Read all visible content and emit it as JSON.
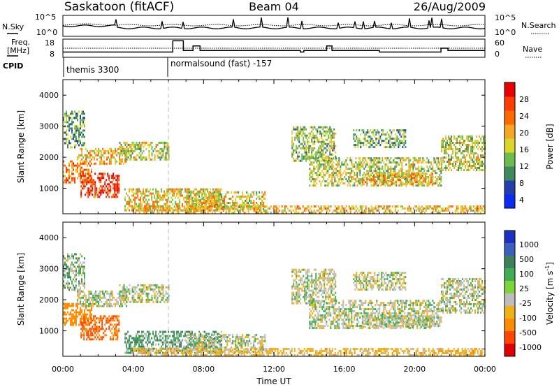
{
  "header": {
    "station": "Saskatoon (fitACF)",
    "beam": "Beam 04",
    "date": "26/Aug/2009"
  },
  "noise_panel": {
    "left_label": "N.Sky",
    "right_label": "N.Search",
    "left_ticks": [
      "10^5",
      "10^0"
    ],
    "right_ticks": [
      "10^5",
      "10^0"
    ]
  },
  "freq_panel": {
    "left_label_line1": "Freq.",
    "left_label_line2": "[MHz]",
    "right_label": "Nave",
    "left_ticks": [
      "18",
      "8"
    ],
    "right_ticks": [
      "60",
      "0"
    ],
    "freq_mhz": [
      {
        "t_start": 0.0,
        "t_end": 6.25,
        "value": 10.5
      },
      {
        "t_start": 6.25,
        "t_end": 6.85,
        "value": 17.8
      },
      {
        "t_start": 6.85,
        "t_end": 7.4,
        "value": 11.5
      },
      {
        "t_start": 7.4,
        "t_end": 7.8,
        "value": 14.5
      },
      {
        "t_start": 7.8,
        "t_end": 13.5,
        "value": 11.5
      },
      {
        "t_start": 13.5,
        "t_end": 13.7,
        "value": 10.5
      },
      {
        "t_start": 13.7,
        "t_end": 15.0,
        "value": 11.5
      },
      {
        "t_start": 15.0,
        "t_end": 15.3,
        "value": 14.5
      },
      {
        "t_start": 15.3,
        "t_end": 18.0,
        "value": 11.5
      },
      {
        "t_start": 18.0,
        "t_end": 21.5,
        "value": 10.5
      },
      {
        "t_start": 21.5,
        "t_end": 21.9,
        "value": 13.0
      },
      {
        "t_start": 21.9,
        "t_end": 24.0,
        "value": 11.5
      }
    ]
  },
  "cpid_panel": {
    "label": "CPID",
    "modes": [
      {
        "name": "themis 3300",
        "t_start": 0.0
      },
      {
        "name": "normalsound (fast) -157",
        "t_start": 6.0
      }
    ]
  },
  "power_panel": {
    "ylabel": "Slant Range [km]",
    "colorbar_label": "Power [dB]",
    "colorbar_ticks": [
      "28",
      "24",
      "20",
      "16",
      "12",
      "8",
      "4"
    ],
    "colors": [
      "#0a2bf0",
      "#233fae",
      "#3f8a5c",
      "#6cbd4e",
      "#d9d52a",
      "#f5a623",
      "#ff6a00",
      "#ff3b00",
      "#e60000"
    ]
  },
  "velocity_panel": {
    "ylabel": "Slant Range [km]",
    "colorbar_label_main": "Velocity [m s",
    "colorbar_label_sup": "-1",
    "colorbar_label_end": "]",
    "colorbar_ticks": [
      "1000",
      "500",
      "100",
      "25",
      "-25",
      "-100",
      "-500",
      "-1000"
    ],
    "colors": [
      "#1f2fc0",
      "#3a5fbf",
      "#3f7f5c",
      "#3fae55",
      "#7cd63a",
      "#bdbdbd",
      "#f0b018",
      "#ff8c00",
      "#ff4500",
      "#e00000"
    ]
  },
  "x_axis": {
    "label": "Time UT",
    "ticks": [
      "00:00",
      "04:00",
      "08:00",
      "12:00",
      "16:00",
      "20:00",
      "00:00"
    ]
  },
  "chart_data": {
    "type": "heatmap",
    "title": "Saskatoon (fitACF) Beam 04 26/Aug/2009",
    "xlabel": "Time UT",
    "ylabel": "Slant Range [km]",
    "xlim": [
      0,
      24
    ],
    "ylim": [
      180,
      4500
    ],
    "y_ticks": [
      1000,
      2000,
      3000,
      4000
    ],
    "power_range_db": [
      0,
      30
    ],
    "velocity_range": [
      -1000,
      1000
    ],
    "echo_regions": [
      {
        "t": [
          0.0,
          1.6
        ],
        "range": [
          1200,
          1900
        ],
        "power_db": 22,
        "velocity": -400
      },
      {
        "t": [
          1.0,
          3.2
        ],
        "range": [
          700,
          1500
        ],
        "power_db": 27,
        "velocity": -500
      },
      {
        "t": [
          0.0,
          1.2
        ],
        "range": [
          2300,
          3500
        ],
        "power_db": 10,
        "velocity": 25
      },
      {
        "t": [
          0.8,
          3.6
        ],
        "range": [
          1800,
          2300
        ],
        "power_db": 18,
        "velocity": 0
      },
      {
        "t": [
          3.2,
          6.0
        ],
        "range": [
          1900,
          2500
        ],
        "power_db": 14,
        "velocity": 0
      },
      {
        "t": [
          3.5,
          9.0
        ],
        "range": [
          300,
          1000
        ],
        "power_db": 17,
        "velocity": 50
      },
      {
        "t": [
          7.0,
          11.5
        ],
        "range": [
          350,
          900
        ],
        "power_db": 15,
        "velocity": 0
      },
      {
        "t": [
          4.0,
          24.0
        ],
        "range": [
          180,
          450
        ],
        "power_db": 18,
        "velocity": -60
      },
      {
        "t": [
          13.0,
          15.5
        ],
        "range": [
          1900,
          3000
        ],
        "power_db": 12,
        "velocity": 0
      },
      {
        "t": [
          14.0,
          21.5
        ],
        "range": [
          1100,
          2000
        ],
        "power_db": 14,
        "velocity": 0
      },
      {
        "t": [
          17.0,
          21.0
        ],
        "range": [
          1100,
          1500
        ],
        "power_db": 19,
        "velocity": 0
      },
      {
        "t": [
          16.5,
          19.5
        ],
        "range": [
          2300,
          2900
        ],
        "power_db": 10,
        "velocity": 0
      },
      {
        "t": [
          21.5,
          24.0
        ],
        "range": [
          1600,
          2700
        ],
        "power_db": 14,
        "velocity": 0
      }
    ]
  }
}
